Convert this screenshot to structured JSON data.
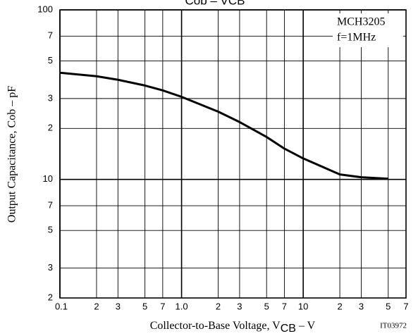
{
  "chart_data": {
    "type": "line",
    "title": "Cob – VCB",
    "x_label": {
      "text": "Collector-to-Base Voltage, V",
      "sub": "CB",
      "tail": " – V"
    },
    "y_label": "Output Capacitance, Cob – pF",
    "annotations": [
      "MCH3205",
      "f=1MHz",
      "IT03972"
    ],
    "x": [
      0.1,
      0.2,
      0.3,
      0.5,
      0.7,
      1,
      2,
      3,
      5,
      7,
      10,
      20,
      30,
      50
    ],
    "series": [
      {
        "name": "Cob",
        "color": "#000000",
        "values": [
          42.6,
          40.6,
          38.7,
          35.8,
          33.5,
          30.7,
          25.1,
          21.8,
          17.8,
          15.2,
          13.3,
          10.7,
          10.3,
          10.1
        ]
      }
    ],
    "log_x": true,
    "log_y": true,
    "grid": true,
    "xlim": [
      0.1,
      70
    ],
    "ylim": [
      2,
      100
    ],
    "xticks": [
      0.1,
      {
        "value": 0.2,
        "label": "2"
      },
      {
        "value": 0.3,
        "label": "3"
      },
      {
        "value": 0.5,
        "label": "5"
      },
      {
        "value": 0.7,
        "label": "7"
      },
      {
        "value": 1,
        "label": "1.0"
      },
      {
        "value": 2,
        "label": "2"
      },
      {
        "value": 3,
        "label": "3"
      },
      {
        "value": 5,
        "label": "5"
      },
      {
        "value": 7,
        "label": "7"
      },
      10,
      {
        "value": 20,
        "label": "2"
      },
      {
        "value": 30,
        "label": "3"
      },
      {
        "value": 50,
        "label": "5"
      },
      {
        "value": 70,
        "label": "7"
      }
    ],
    "yticks": [
      2,
      3,
      5,
      7,
      10,
      {
        "value": 20,
        "label": "2"
      },
      {
        "value": 30,
        "label": "3"
      },
      {
        "value": 50,
        "label": "5"
      },
      {
        "value": 70,
        "label": "7"
      },
      100
    ]
  }
}
